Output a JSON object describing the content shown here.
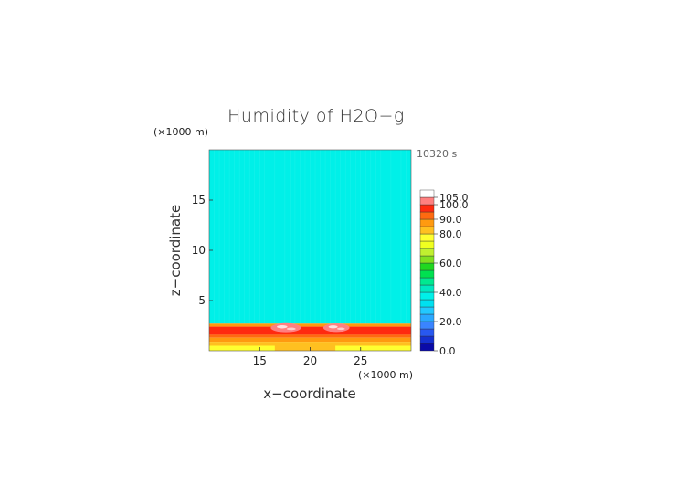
{
  "chart_data": {
    "type": "heatmap",
    "title": "Humidity of H2O−g",
    "time_label": "10320 s",
    "xlabel": "x−coordinate",
    "ylabel": "z−coordinate",
    "x_unit": "(×1000 m)",
    "z_unit": "(×1000 m)",
    "xlim": [
      10,
      30
    ],
    "zlim": [
      0,
      20
    ],
    "x_ticks": [
      15,
      20,
      25
    ],
    "z_ticks": [
      5,
      10,
      15
    ],
    "colorbar": {
      "min": 0,
      "max": 105,
      "labels": [
        "0.0",
        "20.0",
        "40.0",
        "60.0",
        "80.0",
        "90.0",
        "100.0",
        "105.0"
      ],
      "label_values": [
        0,
        20,
        40,
        60,
        80,
        90,
        100,
        105
      ],
      "bands": [
        {
          "from": 0,
          "to": 5,
          "color": "#0a0aa8"
        },
        {
          "from": 5,
          "to": 10,
          "color": "#1530d0"
        },
        {
          "from": 10,
          "to": 15,
          "color": "#2858f0"
        },
        {
          "from": 15,
          "to": 20,
          "color": "#3a84ff"
        },
        {
          "from": 20,
          "to": 25,
          "color": "#2aa8ff"
        },
        {
          "from": 25,
          "to": 30,
          "color": "#22c8ff"
        },
        {
          "from": 30,
          "to": 35,
          "color": "#00e0f0"
        },
        {
          "from": 35,
          "to": 40,
          "color": "#00f0e8"
        },
        {
          "from": 40,
          "to": 45,
          "color": "#00e8c0"
        },
        {
          "from": 45,
          "to": 50,
          "color": "#00e890"
        },
        {
          "from": 50,
          "to": 55,
          "color": "#00e050"
        },
        {
          "from": 55,
          "to": 60,
          "color": "#20d820"
        },
        {
          "from": 60,
          "to": 65,
          "color": "#80e020"
        },
        {
          "from": 65,
          "to": 70,
          "color": "#c0f030"
        },
        {
          "from": 70,
          "to": 75,
          "color": "#f0ff20"
        },
        {
          "from": 75,
          "to": 80,
          "color": "#ffff30"
        },
        {
          "from": 80,
          "to": 85,
          "color": "#ffc020"
        },
        {
          "from": 85,
          "to": 90,
          "color": "#ff9a10"
        },
        {
          "from": 90,
          "to": 95,
          "color": "#ff6a10"
        },
        {
          "from": 95,
          "to": 100,
          "color": "#ff2a10"
        },
        {
          "from": 100,
          "to": 105,
          "color": "#ff8080"
        },
        {
          "from": 105,
          "to": 110,
          "color": "#ffffff"
        }
      ]
    },
    "field_layers": [
      {
        "z_from": 2.7,
        "z_to": 20.0,
        "value": 37,
        "color": "#00f0e8"
      },
      {
        "z_from": 2.4,
        "z_to": 2.7,
        "value": 88,
        "color": "#ff9a10"
      },
      {
        "z_from": 1.6,
        "z_to": 2.4,
        "value": 98,
        "color": "#ff2a10"
      },
      {
        "z_from": 1.3,
        "z_to": 1.6,
        "value": 92,
        "color": "#ff6a10"
      },
      {
        "z_from": 0.9,
        "z_to": 1.3,
        "value": 87,
        "color": "#ff9a10"
      },
      {
        "z_from": 0.5,
        "z_to": 0.9,
        "value": 82,
        "color": "#ffc020"
      },
      {
        "z_from": 0.0,
        "z_to": 0.5,
        "value": 76,
        "color": "#ffff30"
      }
    ],
    "supersaturated_patches": [
      {
        "x_center": 17.6,
        "z_center": 2.3,
        "x_halfwidth": 1.5,
        "z_halfheight": 0.45,
        "value": 102
      },
      {
        "x_center": 22.6,
        "z_center": 2.3,
        "x_halfwidth": 1.3,
        "z_halfheight": 0.42,
        "value": 102
      }
    ],
    "bottom_dip": {
      "x_from": 16.5,
      "x_to": 22.5,
      "z_to": 0.5,
      "value": 80
    }
  }
}
